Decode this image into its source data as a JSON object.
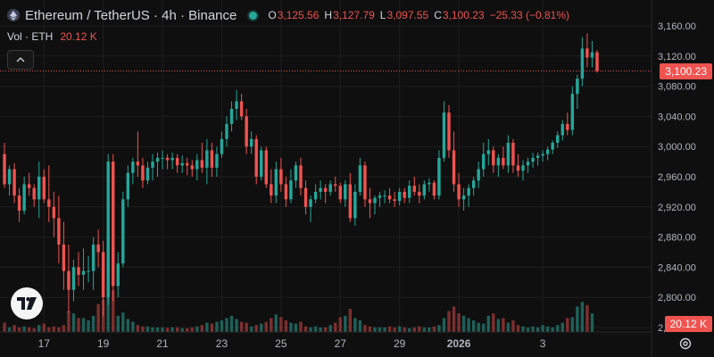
{
  "header": {
    "symbol_title": "Ethereum / TetherUS · 4h · Binance",
    "open_label": "O",
    "open": "3,125.56",
    "high_label": "H",
    "high": "3,127.79",
    "low_label": "L",
    "low": "3,097.55",
    "close_label": "C",
    "close": "3,100.23",
    "change": "−25.33 (−0.81%)"
  },
  "volume": {
    "label": "Vol · ETH",
    "value": "20.12 K"
  },
  "last_price_tag": "3,100.23",
  "volume_tag": "20.12 K",
  "colors": {
    "up": "#26a69a",
    "down": "#ef5350",
    "background": "#0f0f0f",
    "grid": "#1e1e1e",
    "text": "#d1d4dc"
  },
  "icons": {
    "symbol": "ethereum-icon",
    "collapse": "chevron-up-icon",
    "logo": "tradingview-logo-icon",
    "settings": "gear-icon"
  },
  "chart_data": {
    "type": "candlestick",
    "timeframe": "4h",
    "y_axis": {
      "min": 2745,
      "max": 3170,
      "ticks": [
        3160,
        3120,
        3080,
        3040,
        3000,
        2960,
        2920,
        2880,
        2840,
        2800,
        2760
      ]
    },
    "x_axis": {
      "ticks": [
        "17",
        "19",
        "21",
        "23",
        "25",
        "27",
        "29",
        "2026",
        "3"
      ]
    },
    "last_price": 3100.23,
    "candles": [
      [
        2990,
        3005,
        2945,
        2950
      ],
      [
        2950,
        2975,
        2935,
        2970
      ],
      [
        2970,
        2978,
        2925,
        2935
      ],
      [
        2935,
        2945,
        2900,
        2915
      ],
      [
        2915,
        2960,
        2910,
        2950
      ],
      [
        2950,
        2965,
        2935,
        2945
      ],
      [
        2945,
        2950,
        2920,
        2930
      ],
      [
        2930,
        2980,
        2905,
        2960
      ],
      [
        2960,
        2970,
        2925,
        2930
      ],
      [
        2930,
        2975,
        2900,
        2920
      ],
      [
        2920,
        2940,
        2880,
        2905
      ],
      [
        2905,
        2935,
        2845,
        2870
      ],
      [
        2870,
        2900,
        2810,
        2835
      ],
      [
        2835,
        2870,
        2780,
        2810
      ],
      [
        2810,
        2850,
        2795,
        2840
      ],
      [
        2840,
        2860,
        2815,
        2830
      ],
      [
        2830,
        2865,
        2810,
        2835
      ],
      [
        2835,
        2855,
        2820,
        2835
      ],
      [
        2835,
        2880,
        2810,
        2870
      ],
      [
        2870,
        2890,
        2840,
        2860
      ],
      [
        2860,
        2875,
        2775,
        2800
      ],
      [
        2800,
        2990,
        2790,
        2980
      ],
      [
        2980,
        2990,
        2795,
        2815
      ],
      [
        2815,
        2860,
        2800,
        2845
      ],
      [
        2845,
        2940,
        2840,
        2930
      ],
      [
        2930,
        2975,
        2920,
        2965
      ],
      [
        2965,
        2985,
        2950,
        2980
      ],
      [
        2980,
        3020,
        2960,
        2975
      ],
      [
        2975,
        2985,
        2945,
        2955
      ],
      [
        2955,
        2980,
        2950,
        2972
      ],
      [
        2972,
        2990,
        2955,
        2980
      ],
      [
        2980,
        2992,
        2960,
        2985
      ],
      [
        2985,
        2995,
        2970,
        2985
      ],
      [
        2985,
        2990,
        2970,
        2982
      ],
      [
        2982,
        2992,
        2970,
        2985
      ],
      [
        2985,
        2990,
        2965,
        2975
      ],
      [
        2975,
        2988,
        2965,
        2978
      ],
      [
        2978,
        2985,
        2962,
        2975
      ],
      [
        2975,
        2982,
        2960,
        2970
      ],
      [
        2970,
        2990,
        2955,
        2982
      ],
      [
        2982,
        3005,
        2965,
        2972
      ],
      [
        2972,
        3010,
        2950,
        2995
      ],
      [
        2995,
        3005,
        2960,
        2972
      ],
      [
        2972,
        3000,
        2960,
        2990
      ],
      [
        2990,
        3020,
        2985,
        3010
      ],
      [
        3010,
        3040,
        3000,
        3030
      ],
      [
        3030,
        3060,
        3020,
        3050
      ],
      [
        3050,
        3075,
        3035,
        3060
      ],
      [
        3060,
        3070,
        3035,
        3040
      ],
      [
        3040,
        3050,
        2990,
        3000
      ],
      [
        3000,
        3020,
        2990,
        3010
      ],
      [
        3010,
        3015,
        2950,
        2960
      ],
      [
        2960,
        3000,
        2955,
        2995
      ],
      [
        2995,
        3000,
        2945,
        2950
      ],
      [
        2950,
        2970,
        2925,
        2935
      ],
      [
        2935,
        2980,
        2925,
        2970
      ],
      [
        2970,
        2985,
        2940,
        2950
      ],
      [
        2950,
        2960,
        2920,
        2930
      ],
      [
        2930,
        2970,
        2925,
        2955
      ],
      [
        2955,
        2980,
        2945,
        2975
      ],
      [
        2975,
        2985,
        2935,
        2945
      ],
      [
        2945,
        2955,
        2910,
        2920
      ],
      [
        2920,
        2935,
        2900,
        2930
      ],
      [
        2930,
        2950,
        2925,
        2940
      ],
      [
        2940,
        2955,
        2930,
        2945
      ],
      [
        2945,
        2950,
        2925,
        2940
      ],
      [
        2940,
        2955,
        2935,
        2950
      ],
      [
        2950,
        2960,
        2940,
        2948
      ],
      [
        2948,
        2952,
        2925,
        2930
      ],
      [
        2930,
        2955,
        2920,
        2950
      ],
      [
        2950,
        2965,
        2900,
        2905
      ],
      [
        2905,
        2950,
        2895,
        2940
      ],
      [
        2940,
        2985,
        2935,
        2975
      ],
      [
        2975,
        2980,
        2920,
        2930
      ],
      [
        2930,
        2945,
        2905,
        2925
      ],
      [
        2925,
        2935,
        2910,
        2932
      ],
      [
        2932,
        2940,
        2920,
        2935
      ],
      [
        2935,
        2942,
        2925,
        2935
      ],
      [
        2935,
        2945,
        2925,
        2930
      ],
      [
        2930,
        2940,
        2920,
        2928
      ],
      [
        2928,
        2945,
        2922,
        2940
      ],
      [
        2940,
        2945,
        2925,
        2932
      ],
      [
        2932,
        2955,
        2925,
        2948
      ],
      [
        2948,
        2960,
        2935,
        2940
      ],
      [
        2940,
        2950,
        2925,
        2935
      ],
      [
        2935,
        2955,
        2930,
        2950
      ],
      [
        2950,
        2958,
        2940,
        2952
      ],
      [
        2952,
        2955,
        2930,
        2935
      ],
      [
        2935,
        2995,
        2930,
        2985
      ],
      [
        2985,
        3060,
        2980,
        3045
      ],
      [
        3045,
        3055,
        2985,
        2995
      ],
      [
        2995,
        3020,
        2940,
        2950
      ],
      [
        2950,
        2965,
        2920,
        2930
      ],
      [
        2930,
        2945,
        2915,
        2935
      ],
      [
        2935,
        2950,
        2920,
        2945
      ],
      [
        2945,
        2960,
        2935,
        2955
      ],
      [
        2955,
        2980,
        2945,
        2970
      ],
      [
        2970,
        3005,
        2960,
        2990
      ],
      [
        2990,
        3010,
        2975,
        2995
      ],
      [
        2995,
        3000,
        2965,
        2975
      ],
      [
        2975,
        2990,
        2960,
        2985
      ],
      [
        2985,
        3000,
        2970,
        2975
      ],
      [
        2975,
        3015,
        2965,
        3005
      ],
      [
        3005,
        3010,
        2965,
        2975
      ],
      [
        2975,
        2990,
        2960,
        2968
      ],
      [
        2968,
        2982,
        2955,
        2975
      ],
      [
        2975,
        2985,
        2965,
        2980
      ],
      [
        2980,
        2992,
        2972,
        2985
      ],
      [
        2985,
        2992,
        2975,
        2988
      ],
      [
        2988,
        2995,
        2980,
        2990
      ],
      [
        2990,
        3000,
        2982,
        2996
      ],
      [
        2996,
        3008,
        2990,
        3005
      ],
      [
        3005,
        3020,
        2998,
        3015
      ],
      [
        3015,
        3035,
        3008,
        3030
      ],
      [
        3030,
        3045,
        3015,
        3022
      ],
      [
        3022,
        3080,
        3015,
        3070
      ],
      [
        3070,
        3095,
        3050,
        3090
      ],
      [
        3090,
        3145,
        3080,
        3130
      ],
      [
        3130,
        3150,
        3105,
        3118
      ],
      [
        3118,
        3140,
        3105,
        3125
      ],
      [
        3125,
        3128,
        3098,
        3100
      ]
    ],
    "volume": [
      0.2,
      0.1,
      0.15,
      0.1,
      0.12,
      0.1,
      0.08,
      0.15,
      0.18,
      0.1,
      0.12,
      0.1,
      0.15,
      0.45,
      0.4,
      0.3,
      0.3,
      0.25,
      0.35,
      0.6,
      0.7,
      0.85,
      0.9,
      0.35,
      0.42,
      0.28,
      0.22,
      0.15,
      0.12,
      0.12,
      0.1,
      0.1,
      0.1,
      0.09,
      0.1,
      0.1,
      0.08,
      0.08,
      0.1,
      0.12,
      0.15,
      0.2,
      0.18,
      0.22,
      0.25,
      0.3,
      0.35,
      0.28,
      0.22,
      0.2,
      0.12,
      0.15,
      0.18,
      0.22,
      0.3,
      0.38,
      0.32,
      0.25,
      0.2,
      0.18,
      0.22,
      0.12,
      0.1,
      0.12,
      0.1,
      0.1,
      0.15,
      0.2,
      0.32,
      0.35,
      0.5,
      0.3,
      0.25,
      0.15,
      0.12,
      0.1,
      0.1,
      0.1,
      0.12,
      0.1,
      0.12,
      0.1,
      0.08,
      0.1,
      0.12,
      0.1,
      0.1,
      0.12,
      0.15,
      0.3,
      0.45,
      0.55,
      0.4,
      0.35,
      0.3,
      0.25,
      0.2,
      0.18,
      0.35,
      0.4,
      0.28,
      0.3,
      0.2,
      0.25,
      0.15,
      0.12,
      0.1,
      0.12,
      0.1,
      0.15,
      0.12,
      0.1,
      0.15,
      0.2,
      0.3,
      0.32,
      0.55,
      0.65,
      0.58,
      0.4
    ]
  }
}
